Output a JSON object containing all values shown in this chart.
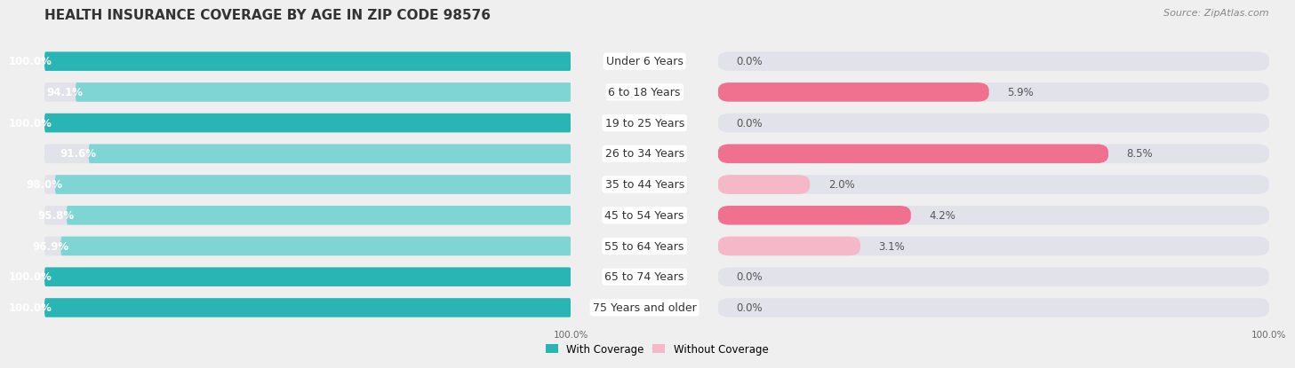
{
  "title": "HEALTH INSURANCE COVERAGE BY AGE IN ZIP CODE 98576",
  "source": "Source: ZipAtlas.com",
  "categories": [
    "Under 6 Years",
    "6 to 18 Years",
    "19 to 25 Years",
    "26 to 34 Years",
    "35 to 44 Years",
    "45 to 54 Years",
    "55 to 64 Years",
    "65 to 74 Years",
    "75 Years and older"
  ],
  "with_coverage": [
    100.0,
    94.1,
    100.0,
    91.6,
    98.0,
    95.8,
    96.9,
    100.0,
    100.0
  ],
  "without_coverage": [
    0.0,
    5.9,
    0.0,
    8.5,
    2.0,
    4.2,
    3.1,
    0.0,
    0.0
  ],
  "color_with_100": "#2ab5b5",
  "color_with_less": "#7fd4d4",
  "color_without": "#f07090",
  "color_without_pale": "#f5b8c8",
  "bg_color": "#efefef",
  "bar_bg_color": "#e2e2ea",
  "title_fontsize": 11,
  "source_fontsize": 8,
  "label_fontsize": 8.5,
  "cat_label_fontsize": 9,
  "bar_height": 0.62,
  "left_xlim": [
    0,
    100
  ],
  "right_xlim": [
    0,
    12
  ]
}
